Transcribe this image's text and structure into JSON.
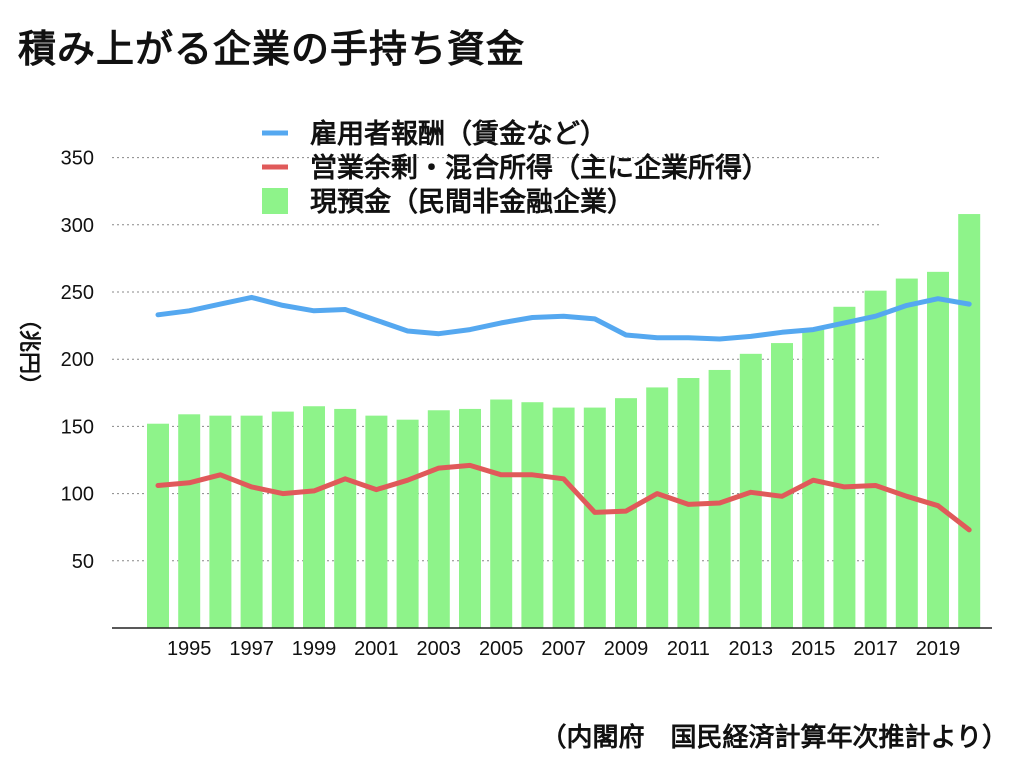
{
  "title": "積み上がる企業の手持ち資金",
  "source": "（内閣府　国民経済計算年次推計より）",
  "chart_data": {
    "type": "bar",
    "title": "積み上がる企業の手持ち資金",
    "ylabel": "（兆円）",
    "ylim": [
      0,
      350
    ],
    "yticks": [
      50,
      100,
      150,
      200,
      250,
      300,
      350
    ],
    "grid": true,
    "legend_position": "top",
    "categories": [
      1994,
      1995,
      1996,
      1997,
      1998,
      1999,
      2000,
      2001,
      2002,
      2003,
      2004,
      2005,
      2006,
      2007,
      2008,
      2009,
      2010,
      2011,
      2012,
      2013,
      2014,
      2015,
      2016,
      2017,
      2018,
      2019,
      2020
    ],
    "xtick_labels": [
      "1995",
      "1997",
      "1999",
      "2001",
      "2003",
      "2005",
      "2007",
      "2009",
      "2011",
      "2013",
      "2015",
      "2017",
      "2019"
    ],
    "series": [
      {
        "name": "雇用者報酬（賃金など）",
        "kind": "line",
        "color": "#55a8f0",
        "values": [
          233,
          236,
          241,
          246,
          240,
          236,
          237,
          229,
          221,
          219,
          222,
          227,
          231,
          232,
          230,
          218,
          216,
          216,
          215,
          217,
          220,
          222,
          227,
          232,
          240,
          245,
          241
        ]
      },
      {
        "name": "営業余剰・混合所得（主に企業所得）",
        "kind": "line",
        "color": "#e05a5a",
        "values": [
          106,
          108,
          114,
          105,
          100,
          102,
          111,
          103,
          110,
          119,
          121,
          114,
          114,
          111,
          86,
          87,
          100,
          92,
          93,
          101,
          98,
          110,
          105,
          106,
          98,
          91,
          73
        ]
      },
      {
        "name": "現預金（民間非金融企業）",
        "kind": "bar",
        "color": "#8ef38a",
        "values": [
          152,
          159,
          158,
          158,
          161,
          165,
          163,
          158,
          155,
          162,
          163,
          170,
          168,
          164,
          164,
          171,
          179,
          186,
          192,
          204,
          212,
          223,
          239,
          251,
          260,
          265,
          308
        ]
      }
    ]
  }
}
